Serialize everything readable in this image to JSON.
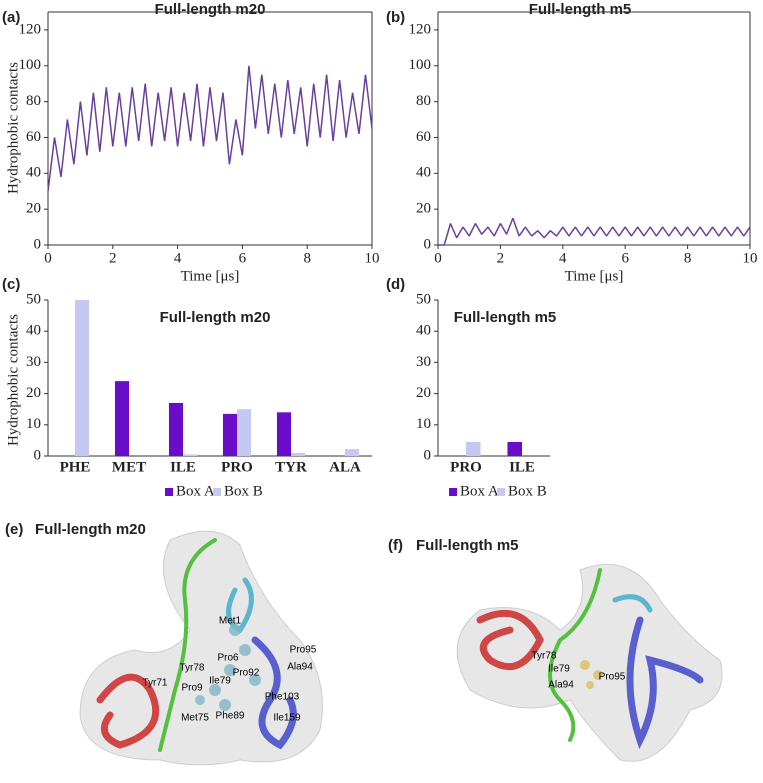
{
  "chart_data": [
    {
      "type": "line",
      "panel_label": "(a)",
      "title": "Full-length m20",
      "xlabel": "Time [μs]",
      "ylabel": "Hydrophobic contacts",
      "color": "#6a3fa0",
      "x": [
        0,
        0.2,
        0.4,
        0.6,
        0.8,
        1,
        1.2,
        1.4,
        1.6,
        1.8,
        2,
        2.2,
        2.4,
        2.6,
        2.8,
        3,
        3.2,
        3.4,
        3.6,
        3.8,
        4,
        4.2,
        4.4,
        4.6,
        4.8,
        5,
        5.2,
        5.4,
        5.6,
        5.8,
        6,
        6.2,
        6.4,
        6.6,
        6.8,
        7,
        7.2,
        7.4,
        7.6,
        7.8,
        8,
        8.2,
        8.4,
        8.6,
        8.8,
        9,
        9.2,
        9.4,
        9.6,
        9.8,
        10
      ],
      "values": [
        30,
        60,
        38,
        70,
        45,
        80,
        50,
        85,
        52,
        88,
        55,
        85,
        55,
        88,
        58,
        90,
        55,
        85,
        58,
        88,
        55,
        85,
        58,
        90,
        55,
        88,
        58,
        85,
        45,
        70,
        50,
        100,
        65,
        95,
        62,
        90,
        60,
        92,
        62,
        88,
        55,
        90,
        60,
        95,
        58,
        92,
        60,
        85,
        62,
        95,
        65
      ],
      "xlim": [
        0,
        10
      ],
      "xticks": [
        0,
        2,
        4,
        6,
        8,
        10
      ],
      "ylim": [
        0,
        130
      ],
      "yticks": [
        0,
        20,
        40,
        60,
        80,
        100,
        120
      ]
    },
    {
      "type": "line",
      "panel_label": "(b)",
      "title": "Full-length m5",
      "xlabel": "Time [μs]",
      "color": "#6a3fa0",
      "x": [
        0,
        0.2,
        0.4,
        0.6,
        0.8,
        1,
        1.2,
        1.4,
        1.6,
        1.8,
        2,
        2.2,
        2.4,
        2.6,
        2.8,
        3,
        3.2,
        3.4,
        3.6,
        3.8,
        4,
        4.2,
        4.4,
        4.6,
        4.8,
        5,
        5.2,
        5.4,
        5.6,
        5.8,
        6,
        6.2,
        6.4,
        6.6,
        6.8,
        7,
        7.2,
        7.4,
        7.6,
        7.8,
        8,
        8.2,
        8.4,
        8.6,
        8.8,
        9,
        9.2,
        9.4,
        9.6,
        9.8,
        10
      ],
      "values": [
        0,
        0,
        12,
        4,
        10,
        5,
        12,
        6,
        10,
        5,
        12,
        6,
        15,
        5,
        10,
        5,
        8,
        4,
        8,
        5,
        10,
        5,
        10,
        5,
        10,
        5,
        10,
        5,
        10,
        5,
        10,
        5,
        10,
        5,
        10,
        5,
        10,
        5,
        10,
        5,
        10,
        5,
        10,
        5,
        10,
        5,
        10,
        5,
        10,
        5,
        10
      ],
      "xlim": [
        0,
        10
      ],
      "xticks": [
        0,
        2,
        4,
        6,
        8,
        10
      ],
      "ylim": [
        0,
        130
      ],
      "yticks": [
        0,
        20,
        40,
        60,
        80,
        100,
        120
      ]
    },
    {
      "type": "bar",
      "panel_label": "(c)",
      "title": "Full-length m20",
      "ylabel": "Hydrophobic contacts",
      "categories": [
        "PHE",
        "MET",
        "ILE",
        "PRO",
        "TYR",
        "ALA"
      ],
      "series": [
        {
          "name": "Box A",
          "color": "#6a0dc8",
          "values": [
            0,
            24,
            17,
            13.5,
            14,
            0
          ]
        },
        {
          "name": "Box B",
          "color": "#c5c8f0",
          "values": [
            50,
            0,
            0.5,
            15,
            1,
            2.2
          ]
        }
      ],
      "ylim": [
        0,
        50
      ],
      "yticks": [
        0,
        10,
        20,
        30,
        40,
        50
      ]
    },
    {
      "type": "bar",
      "panel_label": "(d)",
      "title": "Full-length m5",
      "categories": [
        "PRO",
        "ILE"
      ],
      "series": [
        {
          "name": "Box A",
          "color": "#6a0dc8",
          "values": [
            0,
            4.5
          ]
        },
        {
          "name": "Box B",
          "color": "#c5c8f0",
          "values": [
            4.5,
            0
          ]
        }
      ],
      "ylim": [
        0,
        50
      ],
      "yticks": [
        0,
        10,
        20,
        30,
        40,
        50
      ]
    }
  ],
  "structures": [
    {
      "panel_label": "(e)",
      "title": "Full-length m20",
      "residues": [
        "Met1",
        "Pro95",
        "Pro6",
        "Ala94",
        "Pro92",
        "Tyr78",
        "Ile79",
        "Tyr71",
        "Pro9",
        "Phe103",
        "Met75",
        "Phe89",
        "Ile159"
      ]
    },
    {
      "panel_label": "(f)",
      "title": "Full-length m5",
      "residues": [
        "Tyr78",
        "Ile79",
        "Pro95",
        "Ala94"
      ]
    }
  ]
}
